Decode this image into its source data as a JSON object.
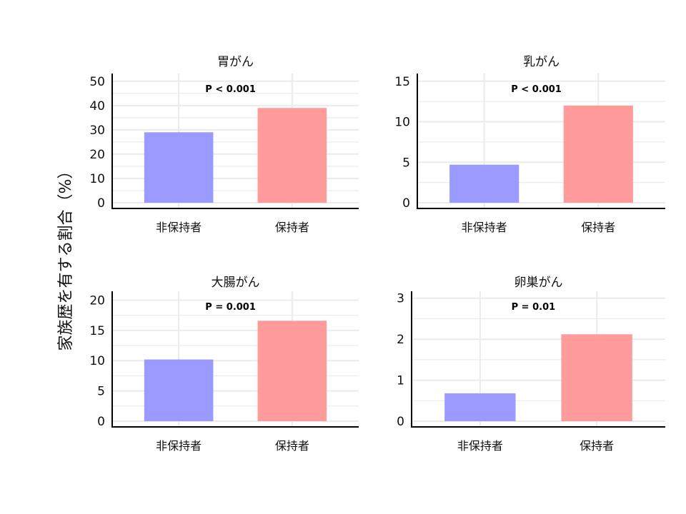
{
  "figure": {
    "ylabel": "家族歴を有する割合（%）"
  },
  "colors": {
    "non_carrier": "#9b9bff",
    "carrier": "#ff9b9b",
    "grid": "#ebebeb",
    "axis": "#000000"
  },
  "chart_data": [
    {
      "type": "bar",
      "title": "胃がん",
      "categories": [
        "非保持者",
        "保持者"
      ],
      "values": [
        29,
        39
      ],
      "ylim": [
        0,
        52
      ],
      "yticks": [
        0,
        10,
        20,
        30,
        40,
        50
      ],
      "annotation": "P < 0.001",
      "grid": true
    },
    {
      "type": "bar",
      "title": "乳がん",
      "categories": [
        "非保持者",
        "保持者"
      ],
      "values": [
        4.7,
        12
      ],
      "ylim": [
        0,
        15.6
      ],
      "yticks": [
        0,
        5,
        10,
        15
      ],
      "annotation": "P < 0.001",
      "grid": true
    },
    {
      "type": "bar",
      "title": "大腸がん",
      "categories": [
        "非保持者",
        "保持者"
      ],
      "values": [
        10.2,
        16.6
      ],
      "ylim": [
        0,
        21
      ],
      "yticks": [
        0,
        5,
        10,
        15,
        20
      ],
      "annotation": "P = 0.001",
      "grid": true
    },
    {
      "type": "bar",
      "title": "卵巣がん",
      "categories": [
        "非保持者",
        "保持者"
      ],
      "values": [
        0.68,
        2.12
      ],
      "ylim": [
        0,
        3.1
      ],
      "yticks": [
        0,
        1,
        2,
        3
      ],
      "annotation": "P = 0.01",
      "grid": true
    }
  ]
}
